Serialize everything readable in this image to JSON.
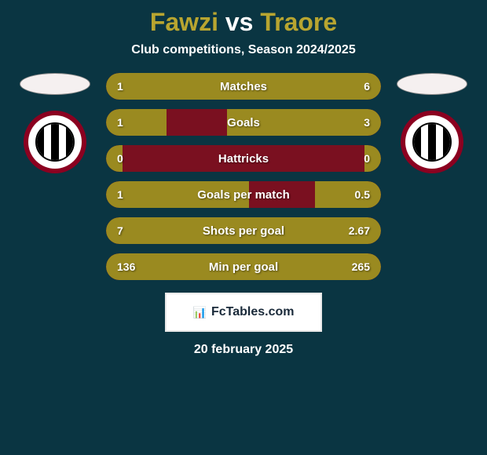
{
  "colors": {
    "background": "#0a3542",
    "title_player": "#b8a530",
    "title_vs": "#ffffff",
    "subtitle": "#ffffff",
    "bar_bg": "#7a1020",
    "bar_left": "#9a8a20",
    "bar_right": "#9a8a20",
    "stat_text": "#ffffff",
    "avatar_bg": "#f5f0f0",
    "badge_outer": "#8b0020",
    "badge_inner": "#ffffff",
    "footer_logo_bg": "#ffffff",
    "footer_logo_text": "#1a2a3a",
    "footer_date": "#ffffff"
  },
  "header": {
    "player1": "Fawzi",
    "vs": "vs",
    "player2": "Traore",
    "subtitle": "Club competitions, Season 2024/2025"
  },
  "stats": [
    {
      "label": "Matches",
      "left_val": "1",
      "right_val": "6",
      "left_pct": 18,
      "right_pct": 82
    },
    {
      "label": "Goals",
      "left_val": "1",
      "right_val": "3",
      "left_pct": 22,
      "right_pct": 56
    },
    {
      "label": "Hattricks",
      "left_val": "0",
      "right_val": "0",
      "left_pct": 6,
      "right_pct": 6
    },
    {
      "label": "Goals per match",
      "left_val": "1",
      "right_val": "0.5",
      "left_pct": 52,
      "right_pct": 24
    },
    {
      "label": "Shots per goal",
      "left_val": "7",
      "right_val": "2.67",
      "left_pct": 80,
      "right_pct": 20
    },
    {
      "label": "Min per goal",
      "left_val": "136",
      "right_val": "265",
      "left_pct": 34,
      "right_pct": 66
    }
  ],
  "footer": {
    "logo_text": "FcTables.com",
    "date": "20 february 2025"
  }
}
